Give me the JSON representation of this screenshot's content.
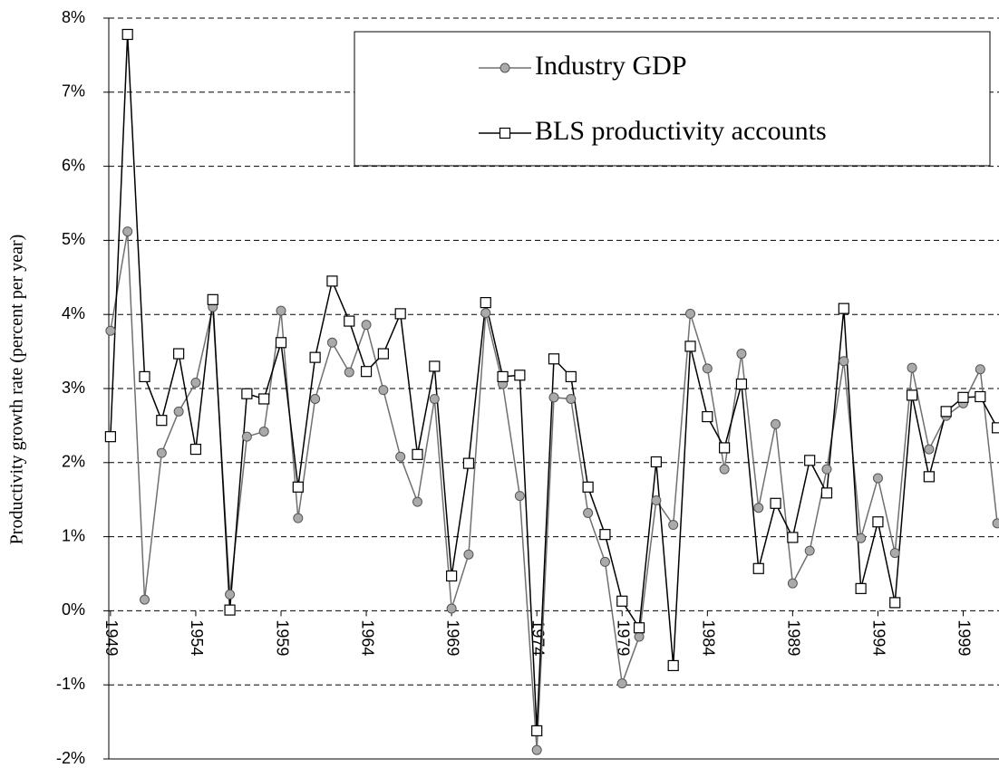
{
  "chart_data": {
    "type": "line",
    "y_label": "Productivity growth rate (percent per year)",
    "x": [
      1949,
      1950,
      1951,
      1952,
      1953,
      1954,
      1955,
      1956,
      1957,
      1958,
      1959,
      1960,
      1961,
      1962,
      1963,
      1964,
      1965,
      1966,
      1967,
      1968,
      1969,
      1970,
      1971,
      1972,
      1973,
      1974,
      1975,
      1976,
      1977,
      1978,
      1979,
      1980,
      1981,
      1982,
      1983,
      1984,
      1985,
      1986,
      1987,
      1988,
      1989,
      1990,
      1991,
      1992,
      1993,
      1994,
      1995,
      1996,
      1997,
      1998,
      1999,
      2000,
      2001
    ],
    "series": [
      {
        "name": "Industry GDP",
        "color": "#707070",
        "marker": "circle",
        "values": [
          3.78,
          5.12,
          0.15,
          2.13,
          2.69,
          3.08,
          4.1,
          0.22,
          2.35,
          2.42,
          4.05,
          1.25,
          2.86,
          3.62,
          3.22,
          3.86,
          2.98,
          2.08,
          1.47,
          2.86,
          0.03,
          0.76,
          4.02,
          3.06,
          1.55,
          -1.88,
          2.88,
          2.86,
          1.32,
          0.66,
          -0.98,
          -0.35,
          1.49,
          1.16,
          4.01,
          3.27,
          1.91,
          3.47,
          1.39,
          2.52,
          0.37,
          0.81,
          1.91,
          3.37,
          0.98,
          1.79,
          0.78,
          3.28,
          2.18,
          2.63,
          2.8,
          3.26,
          1.18
        ]
      },
      {
        "name": "BLS productivity accounts",
        "color": "#000000",
        "marker": "square",
        "values": [
          2.35,
          7.78,
          3.16,
          2.57,
          3.47,
          2.18,
          4.2,
          0.01,
          2.93,
          2.86,
          3.62,
          1.67,
          3.42,
          4.45,
          3.91,
          3.23,
          3.47,
          4.01,
          2.11,
          3.3,
          0.47,
          1.99,
          4.16,
          3.16,
          3.18,
          -1.62,
          3.4,
          3.16,
          1.67,
          1.03,
          0.13,
          -0.23,
          2.01,
          -0.74,
          3.57,
          2.62,
          2.2,
          3.06,
          0.57,
          1.45,
          0.99,
          2.03,
          1.59,
          4.08,
          0.3,
          1.2,
          0.11,
          2.91,
          1.81,
          2.69,
          2.88,
          2.89,
          2.47
        ]
      }
    ],
    "xlim": [
      1948.9,
      2001.1
    ],
    "xticks": [
      1949,
      1954,
      1959,
      1964,
      1969,
      1974,
      1979,
      1984,
      1989,
      1994,
      1999
    ],
    "ylim": [
      -2,
      8
    ],
    "yticks": [
      {
        "value": -2,
        "label": "-2%"
      },
      {
        "value": -1,
        "label": "-1%"
      },
      {
        "value": 0,
        "label": "0%"
      },
      {
        "value": 1,
        "label": "1%"
      },
      {
        "value": 2,
        "label": "2%"
      },
      {
        "value": 3,
        "label": "3%"
      },
      {
        "value": 4,
        "label": "4%"
      },
      {
        "value": 5,
        "label": "5%"
      },
      {
        "value": 6,
        "label": "6%"
      },
      {
        "value": 7,
        "label": "7%"
      },
      {
        "value": 8,
        "label": "8%"
      }
    ],
    "grid": true,
    "legend": "top-right"
  }
}
